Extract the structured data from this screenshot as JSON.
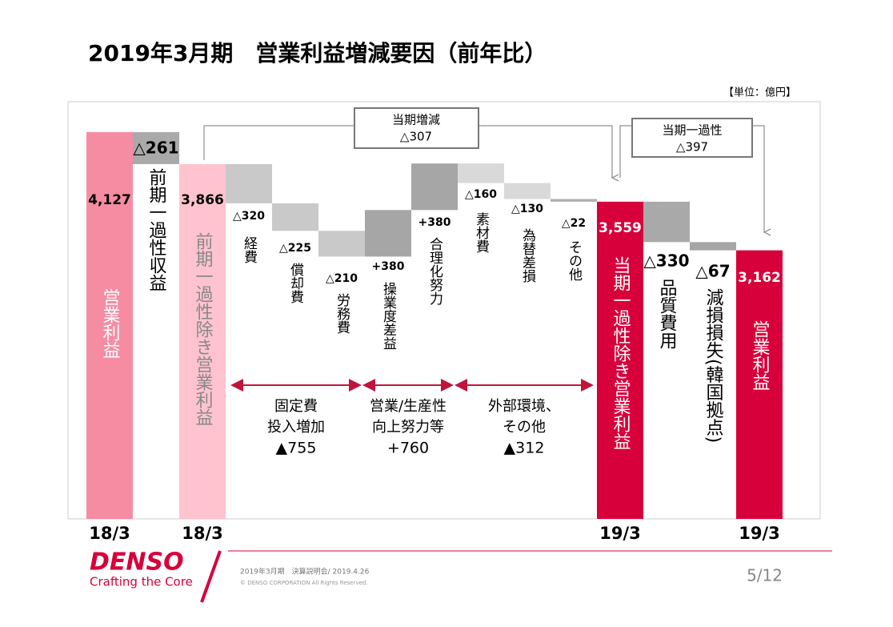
{
  "title": "2019年3月期　営業利益増減要因（前年比）",
  "unit": "【単位：億円】",
  "chart_data": {
    "type": "waterfall",
    "categories": [
      "営業利益",
      "前期一過性収益",
      "前期一過性除き営業利益",
      "経費",
      "償却費",
      "労務費",
      "操業度差益",
      "合理化努力",
      "素材費",
      "為替差損",
      "その他",
      "当期一過性除き営業利益",
      "品質費用",
      "減損損失(韓国拠点)",
      "営業利益"
    ],
    "values": [
      4127,
      -261,
      3866,
      -320,
      -225,
      -210,
      380,
      380,
      -160,
      -130,
      -22,
      3559,
      -330,
      -67,
      3162
    ],
    "value_labels": [
      "4,127",
      "△261",
      "3,866",
      "△320",
      "△225",
      "△210",
      "+380",
      "+380",
      "△160",
      "△130",
      "△22",
      "3,559",
      "△330",
      "△67",
      "3,162"
    ],
    "measure": [
      "absolute",
      "relative",
      "absolute",
      "relative",
      "relative",
      "relative",
      "relative",
      "relative",
      "relative",
      "relative",
      "relative",
      "absolute",
      "relative",
      "relative",
      "absolute"
    ],
    "colors": [
      "#f58ca2",
      "#a9a9a9",
      "#ffc3cf",
      "#c9c9c9",
      "#c9c9c9",
      "#c9c9c9",
      "#a6a6a6",
      "#a6a6a6",
      "#d9d9d9",
      "#d9d9d9",
      "#b0b0b0",
      "#d7003a",
      "#a9a9a9",
      "#a6a6a6",
      "#d7003a"
    ],
    "x_labels": [
      "18/3",
      null,
      "18/3",
      null,
      null,
      null,
      null,
      null,
      null,
      null,
      null,
      "19/3",
      null,
      null,
      "19/3"
    ],
    "brackets": [
      {
        "label": "当期増減",
        "value": -307,
        "value_label": "△307"
      },
      {
        "label": "当期一過性",
        "value": -397,
        "value_label": "△397"
      }
    ],
    "groups": [
      {
        "lines": [
          "固定費",
          "投入増加"
        ],
        "value": -755,
        "value_label": "▲755"
      },
      {
        "lines": [
          "営業/生産性",
          "向上努力等"
        ],
        "value": 760,
        "value_label": "+760"
      },
      {
        "lines": [
          "外部環境、",
          "その他"
        ],
        "value": -312,
        "value_label": "▲312"
      }
    ]
  },
  "footer": {
    "logo": "DENSO",
    "tagline": "Crafting the Core",
    "event": "2019年3月期　決算説明会/ 2019.4.26",
    "copyright": "© DENSO CORPORATION All Rights Reserved.",
    "page": "5/12"
  }
}
